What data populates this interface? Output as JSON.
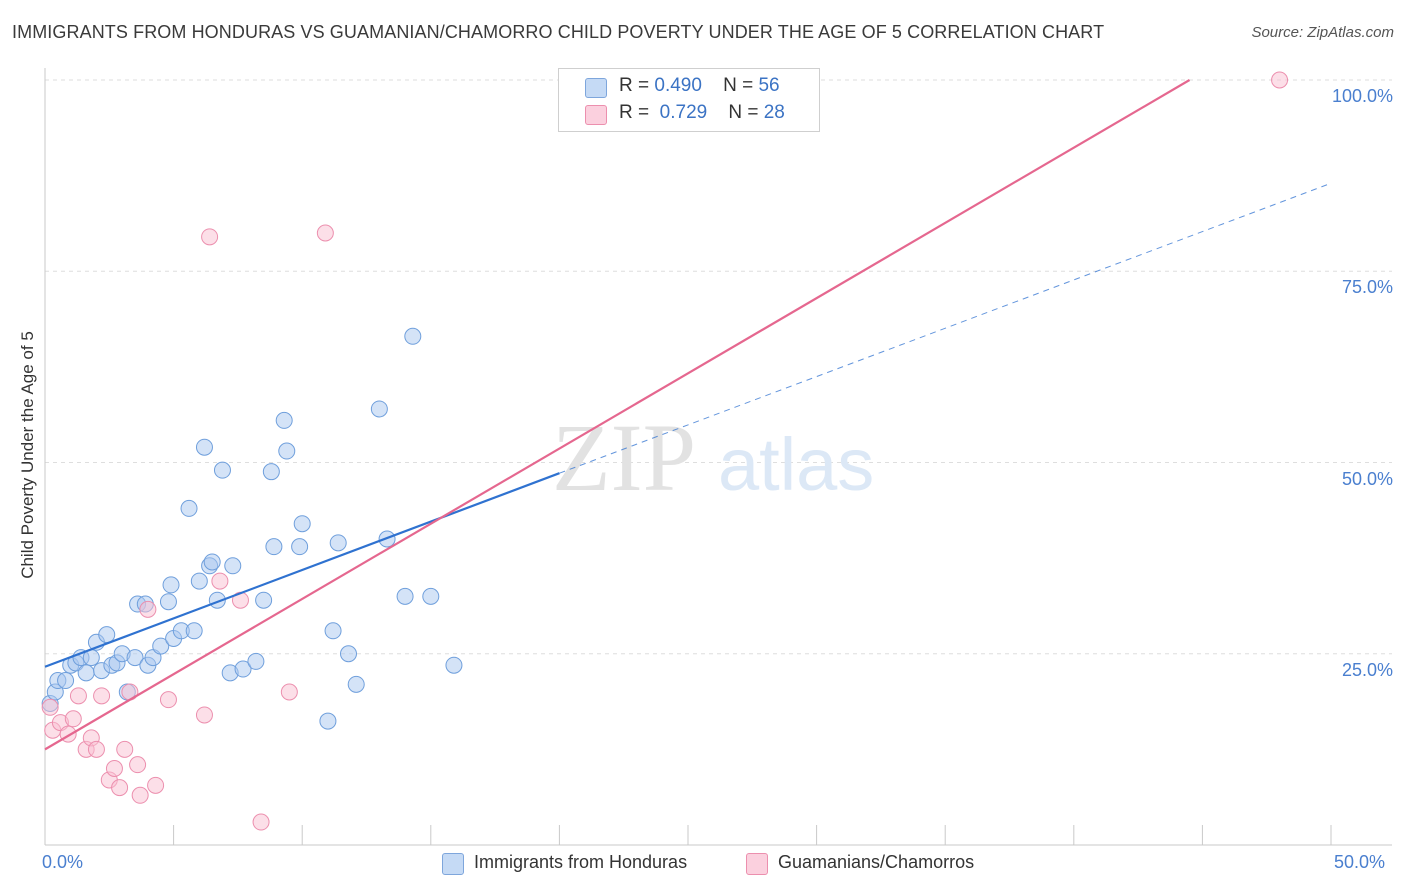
{
  "title": "IMMIGRANTS FROM HONDURAS VS GUAMANIAN/CHAMORRO CHILD POVERTY UNDER THE AGE OF 5 CORRELATION CHART",
  "source": "Source: ZipAtlas.com",
  "watermark": {
    "zip": "ZIP",
    "atlas": "atlas"
  },
  "legend": {
    "rows": [
      {
        "r_label": "R =",
        "r_value": "0.490",
        "n_label": "N =",
        "n_value": "56"
      },
      {
        "r_label": "R =",
        "r_value": "0.729",
        "n_label": "N =",
        "n_value": "28"
      }
    ]
  },
  "chart_data": {
    "type": "scatter",
    "ylabel": "Child Poverty Under the Age of 5",
    "xlim": [
      0,
      50
    ],
    "ylim": [
      0,
      100
    ],
    "x_tick_labels": [
      "0.0%",
      "50.0%"
    ],
    "y_ticks": [
      25,
      50,
      75,
      100
    ],
    "y_tick_labels": [
      "25.0%",
      "50.0%",
      "75.0%",
      "100.0%"
    ],
    "grid": true,
    "series": [
      {
        "name": "Immigrants from Honduras",
        "color": "#a9c8f0",
        "edge": "#6f9fdc",
        "line_color": "#2f72d0",
        "points": [
          [
            0.2,
            18.5
          ],
          [
            0.4,
            20.0
          ],
          [
            0.5,
            21.5
          ],
          [
            0.8,
            21.5
          ],
          [
            1.0,
            23.5
          ],
          [
            1.2,
            23.8
          ],
          [
            1.4,
            24.5
          ],
          [
            1.6,
            22.5
          ],
          [
            1.8,
            24.5
          ],
          [
            2.0,
            26.5
          ],
          [
            2.2,
            22.8
          ],
          [
            2.4,
            27.5
          ],
          [
            2.6,
            23.5
          ],
          [
            2.8,
            23.8
          ],
          [
            3.0,
            25.0
          ],
          [
            3.2,
            20.0
          ],
          [
            3.5,
            24.5
          ],
          [
            3.6,
            31.5
          ],
          [
            3.9,
            31.5
          ],
          [
            4.0,
            23.5
          ],
          [
            4.2,
            24.5
          ],
          [
            4.5,
            26.0
          ],
          [
            4.8,
            31.8
          ],
          [
            4.9,
            34.0
          ],
          [
            5.0,
            27.0
          ],
          [
            5.3,
            28.0
          ],
          [
            5.6,
            44.0
          ],
          [
            5.8,
            28.0
          ],
          [
            6.0,
            34.5
          ],
          [
            6.2,
            52.0
          ],
          [
            6.4,
            36.5
          ],
          [
            6.5,
            37.0
          ],
          [
            6.7,
            32.0
          ],
          [
            6.9,
            49.0
          ],
          [
            7.2,
            22.5
          ],
          [
            7.3,
            36.5
          ],
          [
            7.7,
            23.0
          ],
          [
            8.2,
            24.0
          ],
          [
            8.5,
            32.0
          ],
          [
            8.8,
            48.8
          ],
          [
            8.9,
            39.0
          ],
          [
            9.3,
            55.5
          ],
          [
            9.4,
            51.5
          ],
          [
            9.9,
            39.0
          ],
          [
            10.0,
            42.0
          ],
          [
            11.0,
            16.2
          ],
          [
            11.2,
            28.0
          ],
          [
            11.4,
            39.5
          ],
          [
            11.8,
            25.0
          ],
          [
            12.1,
            21.0
          ],
          [
            13.0,
            57.0
          ],
          [
            13.3,
            40.0
          ],
          [
            14.0,
            32.5
          ],
          [
            14.3,
            66.5
          ],
          [
            15.0,
            32.5
          ],
          [
            15.9,
            23.5
          ]
        ],
        "trend": {
          "x0": 0,
          "y0": 23.3,
          "x1": 20,
          "y1": 48.6,
          "dashed_to_x": 50,
          "dashed_to_y": 86.5
        }
      },
      {
        "name": "Guamanians/Chamorros",
        "color": "#f9bfd2",
        "edge": "#ec8fae",
        "line_color": "#e5678f",
        "points": [
          [
            0.2,
            18.0
          ],
          [
            0.3,
            15.0
          ],
          [
            0.6,
            16.0
          ],
          [
            0.9,
            14.5
          ],
          [
            1.1,
            16.5
          ],
          [
            1.3,
            19.5
          ],
          [
            1.6,
            12.5
          ],
          [
            1.8,
            14.0
          ],
          [
            2.0,
            12.5
          ],
          [
            2.2,
            19.5
          ],
          [
            2.5,
            8.5
          ],
          [
            2.7,
            10.0
          ],
          [
            2.9,
            7.5
          ],
          [
            3.1,
            12.5
          ],
          [
            3.3,
            20.0
          ],
          [
            3.6,
            10.5
          ],
          [
            3.7,
            6.5
          ],
          [
            4.0,
            30.8
          ],
          [
            4.3,
            7.8
          ],
          [
            4.8,
            19.0
          ],
          [
            6.2,
            17.0
          ],
          [
            6.4,
            79.5
          ],
          [
            6.8,
            34.5
          ],
          [
            7.6,
            32.0
          ],
          [
            8.4,
            3.0
          ],
          [
            9.5,
            20.0
          ],
          [
            10.9,
            80.0
          ],
          [
            48.0,
            100.0
          ]
        ],
        "trend": {
          "x0": 0,
          "y0": 12.5,
          "x1": 44.5,
          "y1": 100.0
        }
      }
    ]
  }
}
